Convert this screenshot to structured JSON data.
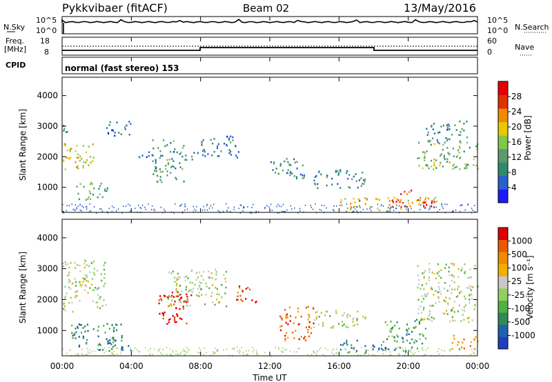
{
  "header": {
    "site": "Pykkvibaer (fitACF)",
    "beam": "Beam 02",
    "date": "13/May/2016"
  },
  "top_panels": {
    "nsky_label": "N.Sky",
    "nsky_ticks": [
      "10^5",
      "10^0"
    ],
    "nsearch_label": "N.Search",
    "freq_label_1": "Freq.",
    "freq_label_2": "[MHz]",
    "freq_ticks": [
      "18",
      "8"
    ],
    "nave_label": "Nave",
    "nave_ticks": [
      "60",
      "0"
    ],
    "cpid_label": "CPID",
    "cpid_text": "normal (fast stereo) 153"
  },
  "chart_data": [
    {
      "type": "heatmap",
      "name": "power",
      "xlabel": "Time UT",
      "ylabel": "Slant Range [km]",
      "xlim_hours": [
        0,
        24
      ],
      "ylim": [
        180,
        4600
      ],
      "yticks": [
        "1000",
        "2000",
        "3000",
        "4000"
      ],
      "colorbar": {
        "label": "Power [dB]",
        "ticks": [
          "4",
          "8",
          "12",
          "16",
          "20",
          "24",
          "28"
        ],
        "colors": [
          "#1a1aff",
          "#2a5fd0",
          "#2f8a6c",
          "#5a9a70",
          "#7fc84a",
          "#e8c800",
          "#f08a00",
          "#e43000",
          "#e60000"
        ]
      },
      "patches": [
        {
          "t": [
            0.0,
            1.8
          ],
          "r": [
            1600,
            2500
          ],
          "level": 0.6
        },
        {
          "t": [
            0.0,
            0.4
          ],
          "r": [
            2800,
            3300
          ],
          "level": 0.3
        },
        {
          "t": [
            0.8,
            2.6
          ],
          "r": [
            600,
            1200
          ],
          "level": 0.4
        },
        {
          "t": [
            2.5,
            4.0
          ],
          "r": [
            2700,
            3200
          ],
          "level": 0.2
        },
        {
          "t": [
            4.3,
            5.2
          ],
          "r": [
            1900,
            2200
          ],
          "level": 0.2
        },
        {
          "t": [
            5.2,
            7.0
          ],
          "r": [
            1200,
            2600
          ],
          "level": 0.35
        },
        {
          "t": [
            7.0,
            7.6
          ],
          "r": [
            1800,
            2200
          ],
          "level": 0.3
        },
        {
          "t": [
            7.8,
            10.2
          ],
          "r": [
            2000,
            2700
          ],
          "level": 0.25
        },
        {
          "t": [
            12.0,
            14.0
          ],
          "r": [
            1300,
            2000
          ],
          "level": 0.3
        },
        {
          "t": [
            14.5,
            17.5
          ],
          "r": [
            1000,
            1600
          ],
          "level": 0.3
        },
        {
          "t": [
            16.0,
            22.0
          ],
          "r": [
            300,
            700
          ],
          "level": 0.65
        },
        {
          "t": [
            19.0,
            21.5
          ],
          "r": [
            350,
            650
          ],
          "level": 0.9
        },
        {
          "t": [
            19.5,
            20.5
          ],
          "r": [
            800,
            1000
          ],
          "level": 0.85
        },
        {
          "t": [
            20.5,
            24.0
          ],
          "r": [
            1600,
            2500
          ],
          "level": 0.45
        },
        {
          "t": [
            21.0,
            23.5
          ],
          "r": [
            2500,
            3200
          ],
          "level": 0.3
        }
      ]
    },
    {
      "type": "heatmap",
      "name": "velocity",
      "xlabel": "Time UT",
      "ylabel": "Slant Range [km]",
      "xlim_hours": [
        0,
        24
      ],
      "ylim": [
        180,
        4600
      ],
      "yticks": [
        "1000",
        "2000",
        "3000",
        "4000"
      ],
      "xticks": [
        "00:00",
        "04:00",
        "08:00",
        "12:00",
        "16:00",
        "20:00",
        "00:00"
      ],
      "colorbar": {
        "label": "Velocity [m s⁻¹]",
        "ticks": [
          "1000",
          "500",
          "100",
          "25",
          "-25",
          "-100",
          "-500",
          "-1000"
        ],
        "colors": [
          "#1f3fc0",
          "#2060b0",
          "#2e8a5a",
          "#50b040",
          "#90d060",
          "#c8c8c8",
          "#f0b000",
          "#f08a00",
          "#e85a00",
          "#e00000"
        ]
      },
      "patches": [
        {
          "t": [
            0.0,
            2.5
          ],
          "r": [
            1600,
            3300
          ],
          "level": 0.5
        },
        {
          "t": [
            0.5,
            3.5
          ],
          "r": [
            500,
            1300
          ],
          "level": 0.25
        },
        {
          "t": [
            2.0,
            4.0
          ],
          "r": [
            350,
            700
          ],
          "level": 0.2
        },
        {
          "t": [
            5.5,
            7.5
          ],
          "r": [
            1200,
            2300
          ],
          "level": 0.95
        },
        {
          "t": [
            6.0,
            9.5
          ],
          "r": [
            1800,
            3000
          ],
          "level": 0.5
        },
        {
          "t": [
            10.0,
            11.2
          ],
          "r": [
            1900,
            2500
          ],
          "level": 0.9
        },
        {
          "t": [
            12.5,
            14.5
          ],
          "r": [
            700,
            1800
          ],
          "level": 0.8
        },
        {
          "t": [
            14.5,
            17.5
          ],
          "r": [
            1100,
            1700
          ],
          "level": 0.5
        },
        {
          "t": [
            16.0,
            20.5
          ],
          "r": [
            300,
            700
          ],
          "level": 0.2
        },
        {
          "t": [
            18.5,
            21.0
          ],
          "r": [
            600,
            1400
          ],
          "level": 0.3
        },
        {
          "t": [
            20.5,
            24.0
          ],
          "r": [
            1300,
            3200
          ],
          "level": 0.5
        },
        {
          "t": [
            22.5,
            24.0
          ],
          "r": [
            400,
            900
          ],
          "level": 0.75
        }
      ]
    }
  ]
}
